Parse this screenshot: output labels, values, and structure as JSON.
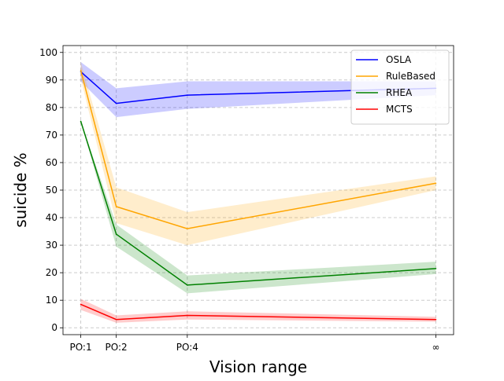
{
  "chart_data": {
    "type": "line",
    "title": "",
    "xlabel": "Vision range",
    "ylabel": "suicide %",
    "categories": [
      "PO:1",
      "PO:2",
      "PO:4",
      "∞"
    ],
    "x_positions": [
      1,
      2,
      4,
      11
    ],
    "ylim": [
      -2.5,
      102.5
    ],
    "yticks": [
      0,
      10,
      20,
      30,
      40,
      50,
      60,
      70,
      80,
      90,
      100
    ],
    "grid": true,
    "legend_position": "top-right",
    "series": [
      {
        "name": "OSLA",
        "color": "#0000ff",
        "values": [
          93,
          81.5,
          84.5,
          87
        ],
        "lower": [
          89.5,
          76.5,
          79.5,
          84.5
        ],
        "upper": [
          96.5,
          87,
          89.5,
          89.5
        ]
      },
      {
        "name": "RuleBased",
        "color": "#ffa500",
        "values": [
          93.5,
          44,
          36,
          52.5
        ],
        "lower": [
          90.5,
          38,
          30,
          50
        ],
        "upper": [
          96.5,
          51,
          42,
          55
        ]
      },
      {
        "name": "RHEA",
        "color": "#008000",
        "values": [
          75,
          34,
          15.5,
          21.5
        ],
        "lower": [
          75,
          29.5,
          12.5,
          19.5
        ],
        "upper": [
          75,
          37.5,
          19,
          24
        ]
      },
      {
        "name": "MCTS",
        "color": "#ff0000",
        "values": [
          8.5,
          3,
          4.5,
          3
        ],
        "lower": [
          6.5,
          1.8,
          3,
          2.2
        ],
        "upper": [
          10.5,
          4.5,
          6,
          4
        ]
      }
    ]
  }
}
